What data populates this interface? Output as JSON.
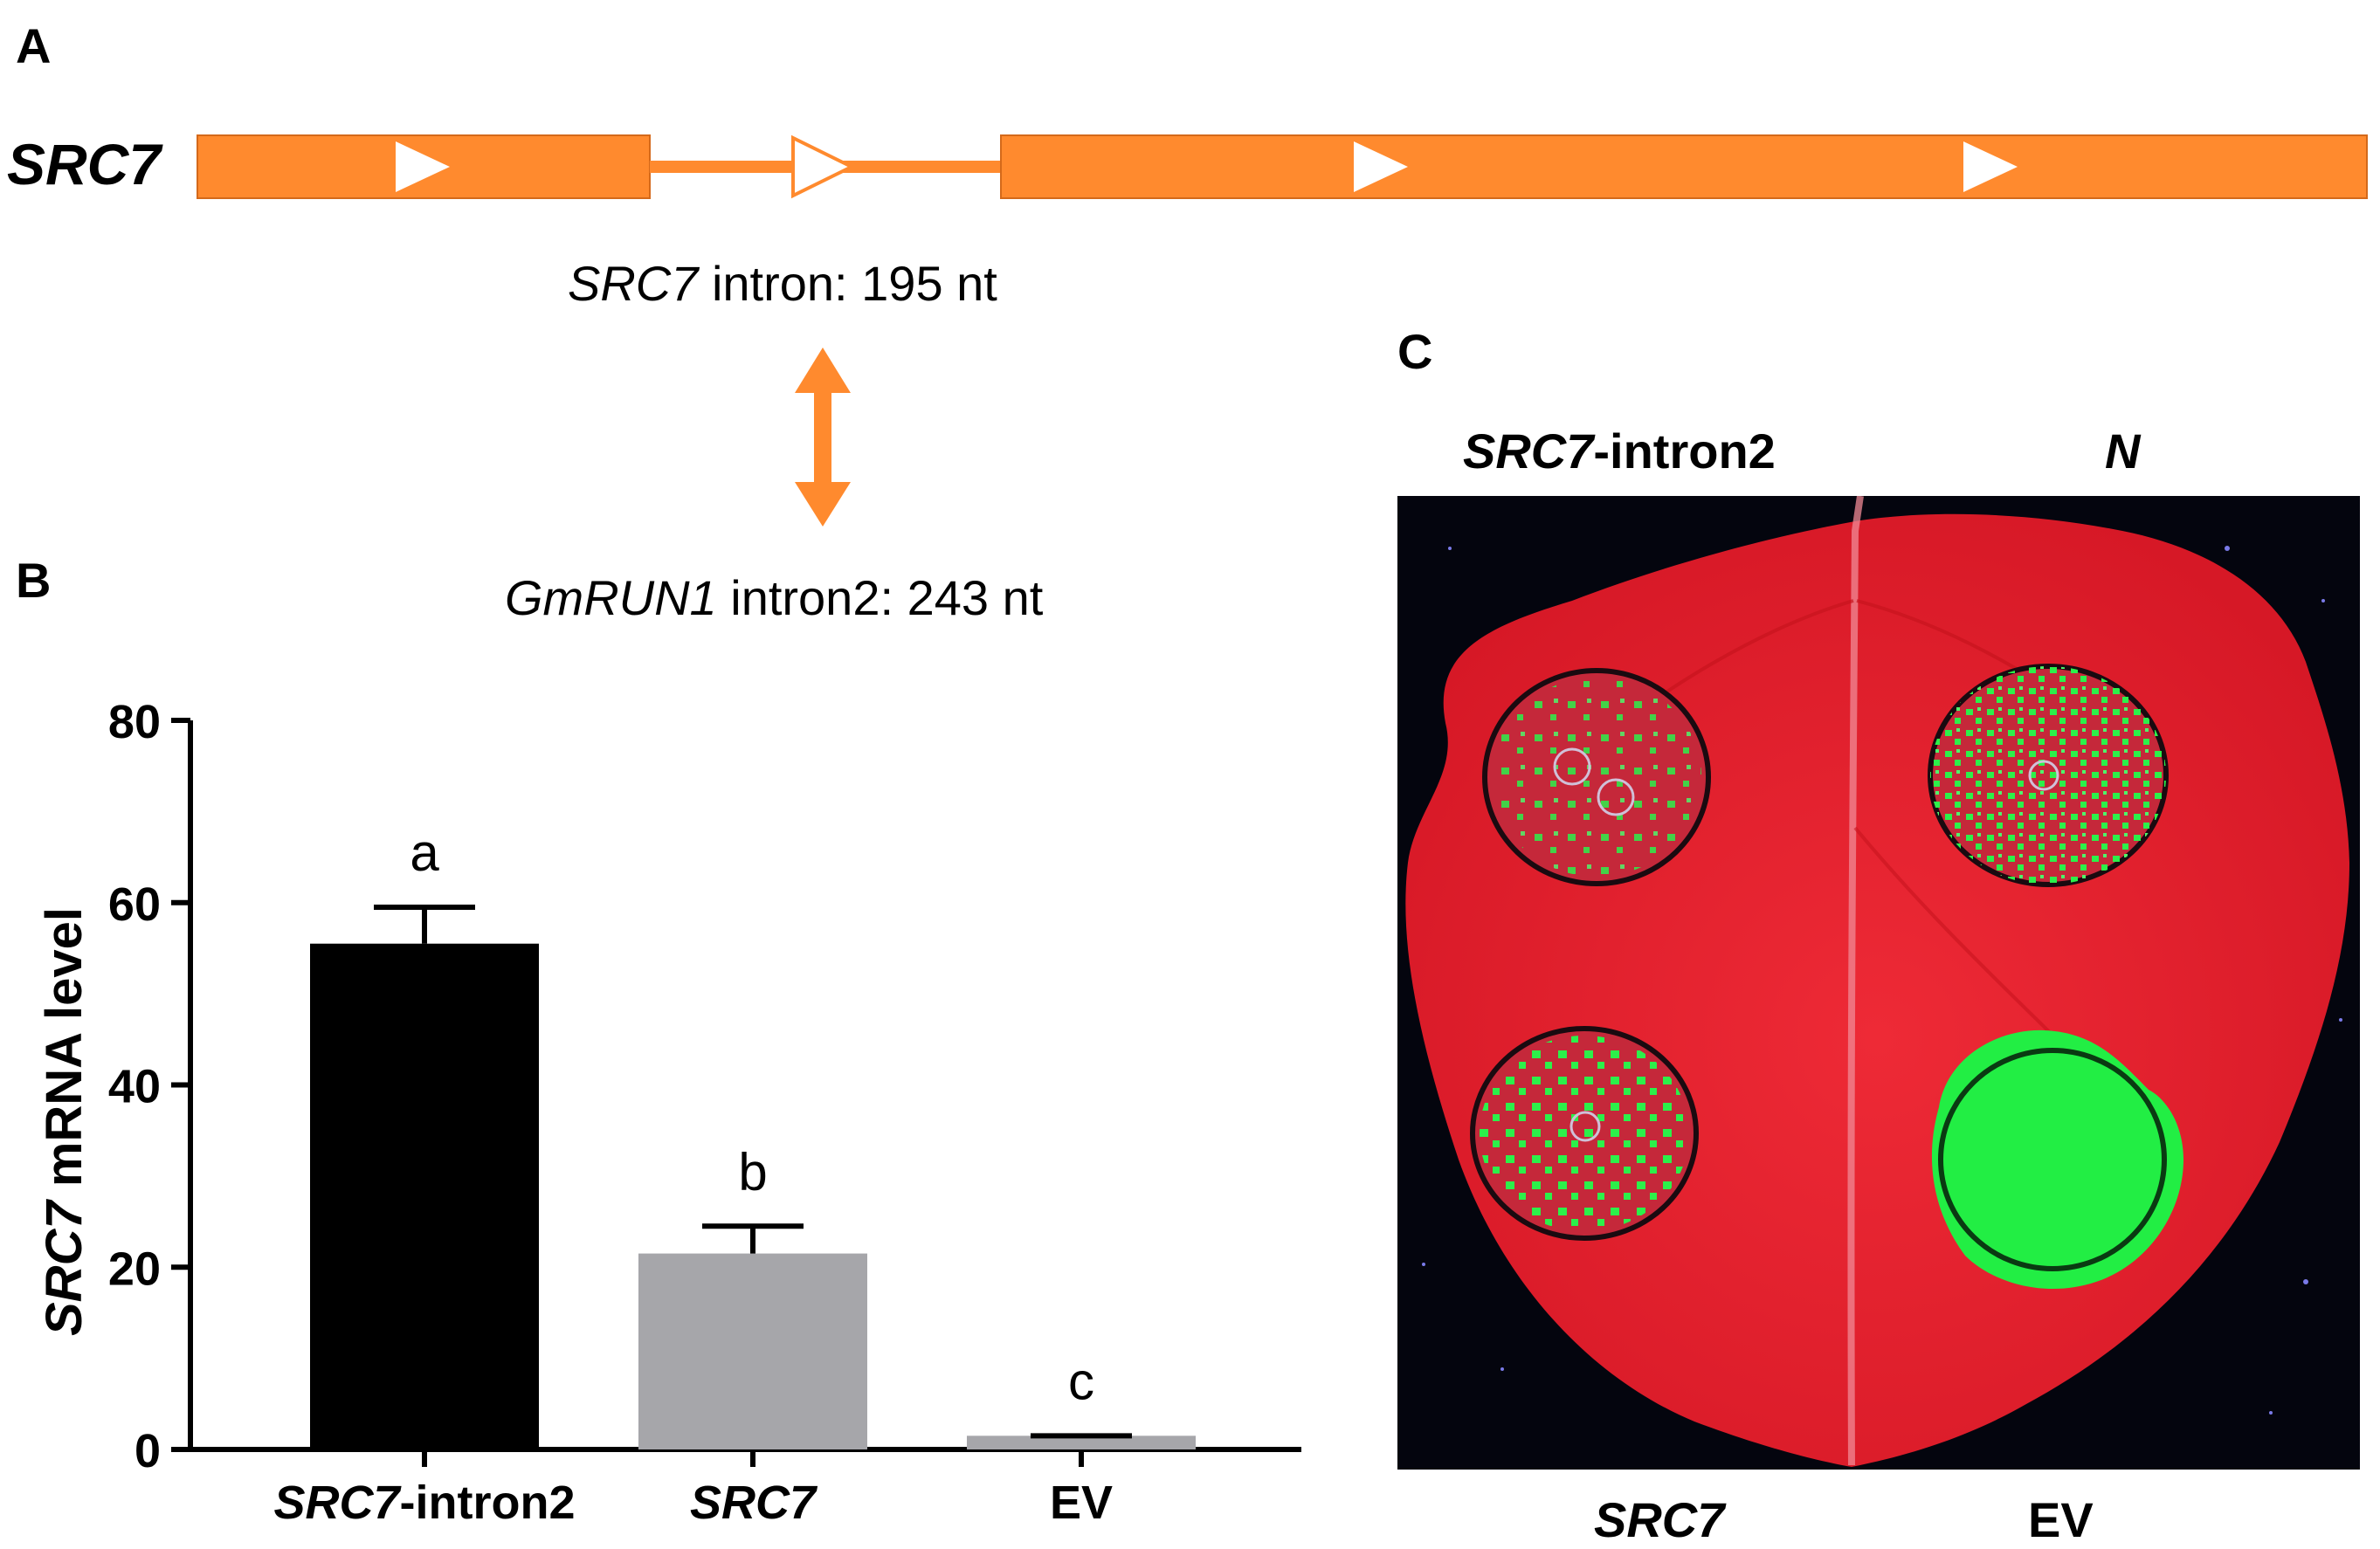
{
  "panelA": {
    "letter": "A",
    "gene": "SRC7",
    "intron_caption": {
      "italic": "SRC7",
      "rest": " intron: 195 nt"
    },
    "compare_caption": {
      "italic": "GmRUN1",
      "rest": " intron2: 243 nt"
    },
    "colors": {
      "exon": "#ff8a2e",
      "arrow_fill": "#ffffff"
    }
  },
  "panelB": {
    "letter": "B",
    "ylabel": {
      "italic": "SRC7",
      "rest": " mRNA level"
    }
  },
  "panelC": {
    "letter": "C",
    "labels": {
      "top_left": {
        "italic": "SRC7",
        "rest": "-intron2"
      },
      "top_right": {
        "italic": "N",
        "rest": ""
      },
      "bottom_left": {
        "italic": "SRC7",
        "rest": ""
      },
      "bottom_right": {
        "italic": "",
        "rest": "EV"
      }
    },
    "colors": {
      "leaf": "#e8202c",
      "background": "#04050e",
      "gfp": "#22ee44"
    }
  },
  "chart_data": {
    "type": "bar",
    "categories": [
      "SRC7-intron2",
      "SRC7",
      "EV"
    ],
    "category_parts": [
      {
        "italic": "SRC7",
        "rest": "-intron2"
      },
      {
        "italic": "SRC7",
        "rest": ""
      },
      {
        "italic": "",
        "rest": "EV"
      }
    ],
    "values": [
      55.5,
      21.5,
      1.5
    ],
    "errors": [
      4.0,
      3.0,
      0.0
    ],
    "significance_letters": [
      "a",
      "b",
      "c"
    ],
    "bar_colors": [
      "#000000",
      "#a6a6aa",
      "#a6a6aa"
    ],
    "ylim": [
      0,
      80
    ],
    "yticks": [
      "0",
      "20",
      "40",
      "60",
      "80"
    ],
    "ylabel": "SRC7 mRNA level",
    "xlabel": ""
  }
}
